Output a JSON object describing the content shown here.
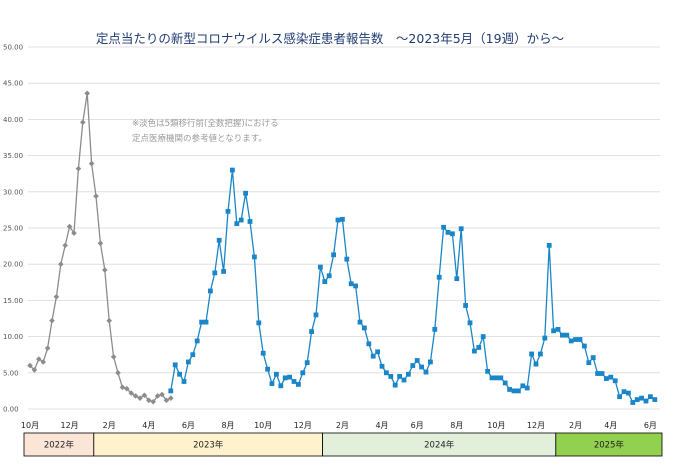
{
  "chart_data": {
    "type": "line",
    "title": "定点当たりの新型コロナウイルス感染症患者報告数　～2023年5月（19週）から～",
    "xlabel": "",
    "ylabel": "",
    "ylim": [
      0,
      50
    ],
    "yticks": [
      "0.00",
      "5.00",
      "10.00",
      "15.00",
      "20.00",
      "25.00",
      "30.00",
      "35.00",
      "40.00",
      "45.00",
      "50.00"
    ],
    "grid": true,
    "annotation": [
      "※淡色は5類移行前(全数把握)における",
      "定点医療機関の参考値となります。"
    ],
    "x_month_labels": [
      {
        "label": "10月",
        "week": 0
      },
      {
        "label": "12月",
        "week": 9
      },
      {
        "label": "2月",
        "week": 18
      },
      {
        "label": "4月",
        "week": 27
      },
      {
        "label": "6月",
        "week": 36
      },
      {
        "label": "8月",
        "week": 45
      },
      {
        "label": "10月",
        "week": 53
      },
      {
        "label": "12月",
        "week": 62
      },
      {
        "label": "2月",
        "week": 71
      },
      {
        "label": "4月",
        "week": 80
      },
      {
        "label": "6月",
        "week": 88
      },
      {
        "label": "8月",
        "week": 97
      },
      {
        "label": "10月",
        "week": 106
      },
      {
        "label": "12月",
        "week": 115
      },
      {
        "label": "2月",
        "week": 124
      },
      {
        "label": "4月",
        "week": 132
      },
      {
        "label": "6月",
        "week": 141
      }
    ],
    "year_bands": [
      {
        "label": "2022年",
        "start_week": -1.5,
        "end_week": 14.5,
        "color": "#fbe5d6"
      },
      {
        "label": "2023年",
        "start_week": 14.5,
        "end_week": 66.5,
        "color": "#fff2cc"
      },
      {
        "label": "2024年",
        "start_week": 66.5,
        "end_week": 119.5,
        "color": "#e2efda"
      },
      {
        "label": "2025年",
        "start_week": 119.5,
        "end_week": 147,
        "color": "#92d050"
      }
    ],
    "series": [
      {
        "color": "#8c8c8c",
        "marker": "diamond",
        "start_week": 0,
        "values": [
          6.0,
          5.4,
          6.9,
          6.5,
          8.4,
          12.2,
          15.5,
          20.0,
          22.6,
          25.2,
          24.3,
          33.2,
          39.6,
          43.6,
          33.9,
          29.4,
          22.9,
          19.2,
          12.2,
          7.2,
          5.0,
          3.0,
          2.8,
          2.2,
          1.8,
          1.5,
          1.9,
          1.2,
          1.0,
          1.8,
          2.0,
          1.2,
          1.5
        ]
      },
      {
        "color": "#1a86c8",
        "marker": "square",
        "start_week": 32,
        "values": [
          2.5,
          6.1,
          4.8,
          3.8,
          6.5,
          7.5,
          9.4,
          12.0,
          12.0,
          16.3,
          18.8,
          23.3,
          19.0,
          27.3,
          33.0,
          25.6,
          26.1,
          29.8,
          25.9,
          21.0,
          11.9,
          7.7,
          5.5,
          3.5,
          4.8,
          3.2,
          4.3,
          4.4,
          3.8,
          3.4,
          5.0,
          6.4,
          10.7,
          13.0,
          19.6,
          17.6,
          18.4,
          21.3,
          26.1,
          26.2,
          20.7,
          17.3,
          17.0,
          12.0,
          11.2,
          9.0,
          7.3,
          7.9,
          5.9,
          5.0,
          4.5,
          3.3,
          4.5,
          4.0,
          4.8,
          6.0,
          6.7,
          5.8,
          5.1,
          6.5,
          11.0,
          18.2,
          25.1,
          24.4,
          24.2,
          18.0,
          24.9,
          14.3,
          11.9,
          8.0,
          8.5,
          10.0,
          5.2,
          4.3,
          4.3,
          4.3,
          3.6,
          2.7,
          2.5,
          2.5,
          3.2,
          2.9,
          7.6,
          6.2,
          7.6,
          9.8,
          22.6,
          10.8,
          11.0,
          10.2,
          10.2,
          9.4,
          9.6,
          9.6,
          8.7,
          6.4,
          7.1,
          4.9,
          4.9,
          4.2,
          4.4,
          3.9,
          1.7,
          2.4,
          2.2,
          0.9,
          1.3,
          1.5,
          1.1,
          1.7,
          1.3
        ]
      }
    ]
  }
}
